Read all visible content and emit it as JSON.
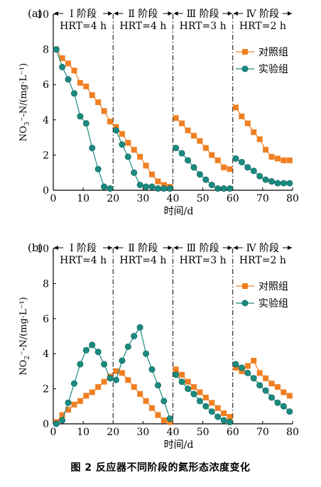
{
  "figure": {
    "caption": "图 2   反应器不同阶段的氮形态浓度变化"
  },
  "chart_data": [
    {
      "type": "line",
      "panel_label": "(a)",
      "xlabel": "时间/d",
      "ylabel_main": "NO",
      "ylabel_sub": "3",
      "ylabel_rest": "⁻-N/(mg·L⁻¹)",
      "xlim": [
        0,
        80
      ],
      "ylim": [
        0,
        10
      ],
      "xticks": [
        0,
        10,
        20,
        30,
        40,
        50,
        60,
        70,
        80
      ],
      "yticks": [
        0,
        2,
        4,
        6,
        8,
        10
      ],
      "stage_boundaries": [
        20,
        40,
        60
      ],
      "stages": [
        {
          "name": "Ⅰ 阶段",
          "hrt": "HRT=4 h"
        },
        {
          "name": "Ⅱ 阶段",
          "hrt": "HRT=4 h"
        },
        {
          "name": "Ⅲ 阶段",
          "hrt": "HRT=3 h"
        },
        {
          "name": "Ⅳ 阶段",
          "hrt": "HRT=2 h"
        }
      ],
      "legend_position": "upper-right",
      "series": [
        {
          "name": "对照组",
          "color": "#f07f22",
          "marker": "square",
          "x": [
            1,
            3,
            5,
            7,
            9,
            11,
            13,
            15,
            17,
            19,
            21,
            23,
            25,
            27,
            29,
            31,
            33,
            35,
            37,
            39,
            41,
            43,
            45,
            47,
            49,
            51,
            53,
            55,
            57,
            59,
            61,
            63,
            65,
            67,
            69,
            71,
            73,
            75,
            77,
            79
          ],
          "y": [
            8.0,
            7.5,
            7.2,
            6.8,
            6.1,
            5.9,
            5.4,
            5.0,
            4.5,
            3.9,
            3.6,
            3.2,
            2.7,
            2.3,
            1.9,
            1.4,
            0.9,
            0.5,
            0.3,
            0.2,
            4.1,
            3.8,
            3.4,
            3.1,
            2.8,
            2.4,
            2.0,
            1.7,
            1.3,
            1.2,
            4.7,
            4.2,
            3.8,
            3.3,
            2.9,
            2.3,
            1.9,
            1.8,
            1.7,
            1.7
          ]
        },
        {
          "name": "实验组",
          "color": "#1a8a80",
          "marker": "circle",
          "x": [
            1,
            3,
            5,
            7,
            9,
            11,
            13,
            15,
            17,
            19,
            21,
            23,
            25,
            27,
            29,
            31,
            33,
            35,
            37,
            39,
            41,
            43,
            45,
            47,
            49,
            51,
            53,
            55,
            57,
            59,
            61,
            63,
            65,
            67,
            69,
            71,
            73,
            75,
            77,
            79
          ],
          "y": [
            8.0,
            7.0,
            6.3,
            5.5,
            4.2,
            3.8,
            2.4,
            1.2,
            0.2,
            0.1,
            3.4,
            2.6,
            1.9,
            1.0,
            0.3,
            0.2,
            0.2,
            0.1,
            0.1,
            0.1,
            2.4,
            2.1,
            1.7,
            1.3,
            0.9,
            0.6,
            0.3,
            0.1,
            0.1,
            0.1,
            1.8,
            1.6,
            1.3,
            1.1,
            0.8,
            0.6,
            0.5,
            0.4,
            0.4,
            0.4
          ]
        }
      ]
    },
    {
      "type": "line",
      "panel_label": "(b)",
      "xlabel": "时间/d",
      "ylabel_main": "NO",
      "ylabel_sub": "2",
      "ylabel_rest": "⁻-N/(mg·L⁻¹)",
      "xlim": [
        0,
        80
      ],
      "ylim": [
        0,
        10
      ],
      "xticks": [
        0,
        10,
        20,
        30,
        40,
        50,
        60,
        70,
        80
      ],
      "yticks": [
        0,
        2,
        4,
        6,
        8,
        10
      ],
      "stage_boundaries": [
        20,
        40,
        60
      ],
      "stages": [
        {
          "name": "Ⅰ 阶段",
          "hrt": "HRT=4 h"
        },
        {
          "name": "Ⅱ 阶段",
          "hrt": "HRT=4 h"
        },
        {
          "name": "Ⅲ 阶段",
          "hrt": "HRT=3 h"
        },
        {
          "name": "Ⅳ 阶段",
          "hrt": "HRT=2 h"
        }
      ],
      "legend_position": "upper-right",
      "series": [
        {
          "name": "对照组",
          "color": "#f07f22",
          "marker": "square",
          "x": [
            1,
            3,
            5,
            7,
            9,
            11,
            13,
            15,
            17,
            19,
            21,
            23,
            25,
            27,
            29,
            31,
            33,
            35,
            37,
            39,
            41,
            43,
            45,
            47,
            49,
            51,
            53,
            55,
            57,
            59,
            61,
            63,
            65,
            67,
            69,
            71,
            73,
            75,
            77,
            79
          ],
          "y": [
            0.1,
            0.5,
            0.8,
            1.1,
            1.3,
            1.6,
            1.8,
            2.1,
            2.4,
            2.7,
            3.0,
            2.9,
            2.5,
            2.1,
            1.7,
            1.3,
            0.9,
            0.5,
            0.2,
            0.1,
            3.1,
            2.8,
            2.4,
            2.1,
            1.8,
            1.5,
            1.2,
            0.9,
            0.6,
            0.4,
            3.2,
            3.0,
            3.3,
            3.6,
            2.9,
            2.6,
            2.3,
            2.1,
            1.8,
            1.6
          ]
        },
        {
          "name": "实验组",
          "color": "#1a8a80",
          "marker": "circle",
          "x": [
            1,
            3,
            5,
            7,
            9,
            11,
            13,
            15,
            17,
            19,
            21,
            23,
            25,
            27,
            29,
            31,
            33,
            35,
            37,
            39,
            41,
            43,
            45,
            47,
            49,
            51,
            53,
            55,
            57,
            59,
            61,
            63,
            65,
            67,
            69,
            71,
            73,
            75,
            77,
            79
          ],
          "y": [
            0.0,
            0.2,
            1.2,
            2.3,
            3.4,
            4.2,
            4.5,
            4.1,
            3.4,
            2.6,
            2.5,
            3.6,
            4.4,
            5.0,
            5.5,
            4.0,
            3.1,
            2.2,
            1.3,
            0.3,
            2.8,
            2.4,
            2.0,
            1.7,
            1.3,
            1.0,
            0.7,
            0.4,
            0.2,
            0.1,
            3.4,
            3.2,
            2.9,
            2.6,
            2.2,
            1.9,
            1.5,
            1.2,
            1.0,
            0.7
          ]
        }
      ]
    }
  ]
}
